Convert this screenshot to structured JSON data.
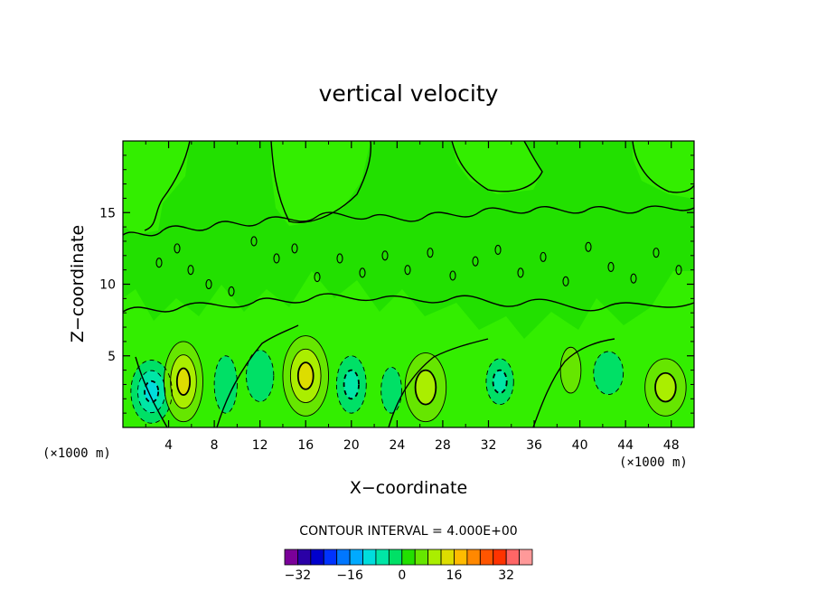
{
  "chart_data": {
    "type": "heatmap",
    "title": "vertical velocity",
    "xlabel": "X−coordinate",
    "ylabel": "Z−coordinate",
    "x_units": "(×1000 m)",
    "x_units_right": "(×1000 m)",
    "xlim": [
      0,
      50
    ],
    "ylim": [
      0,
      20
    ],
    "x_ticks": [
      4,
      8,
      12,
      16,
      20,
      24,
      28,
      32,
      36,
      40,
      44,
      48
    ],
    "y_ticks": [
      5,
      10,
      15
    ],
    "contour_interval_label": "CONTOUR INTERVAL = 4.000E+00",
    "contour_interval": 4,
    "colorbar_ticks": [
      {
        "label": "−32",
        "value": -32
      },
      {
        "label": "−16",
        "value": -16
      },
      {
        "label": "0",
        "value": 0
      },
      {
        "label": "16",
        "value": 16
      },
      {
        "label": "32",
        "value": 32
      }
    ],
    "colorbar_colors": [
      "#7a0099",
      "#2a00a6",
      "#0000cc",
      "#0033ff",
      "#0077ff",
      "#00aaff",
      "#00dddd",
      "#00e6a6",
      "#00e066",
      "#22e000",
      "#66e600",
      "#aaee00",
      "#dddd00",
      "#ffbb00",
      "#ff8800",
      "#ff5500",
      "#ff3300",
      "#ff6666",
      "#ff9999"
    ],
    "cells": [
      {
        "x": 2.5,
        "z": 2.5,
        "value": -12,
        "rx": 1.8,
        "rz": 2.2
      },
      {
        "x": 5.3,
        "z": 3.2,
        "value": 10,
        "rx": 1.7,
        "rz": 2.8
      },
      {
        "x": 9.0,
        "z": 3.0,
        "value": -4,
        "rx": 1.0,
        "rz": 2.0
      },
      {
        "x": 12.0,
        "z": 3.6,
        "value": -3,
        "rx": 1.2,
        "rz": 1.8
      },
      {
        "x": 16.0,
        "z": 3.6,
        "value": 10,
        "rx": 2.0,
        "rz": 2.8
      },
      {
        "x": 20.0,
        "z": 3.0,
        "value": -8,
        "rx": 1.3,
        "rz": 2.0
      },
      {
        "x": 23.5,
        "z": 2.6,
        "value": -4,
        "rx": 0.9,
        "rz": 1.6
      },
      {
        "x": 26.5,
        "z": 2.8,
        "value": 9,
        "rx": 1.8,
        "rz": 2.4
      },
      {
        "x": 33.0,
        "z": 3.2,
        "value": -7,
        "rx": 1.2,
        "rz": 1.6
      },
      {
        "x": 39.2,
        "z": 4.0,
        "value": 5,
        "rx": 0.9,
        "rz": 1.6
      },
      {
        "x": 42.5,
        "z": 3.8,
        "value": -4,
        "rx": 1.3,
        "rz": 1.5
      },
      {
        "x": 47.5,
        "z": 2.8,
        "value": 9,
        "rx": 1.8,
        "rz": 2.0
      }
    ]
  }
}
